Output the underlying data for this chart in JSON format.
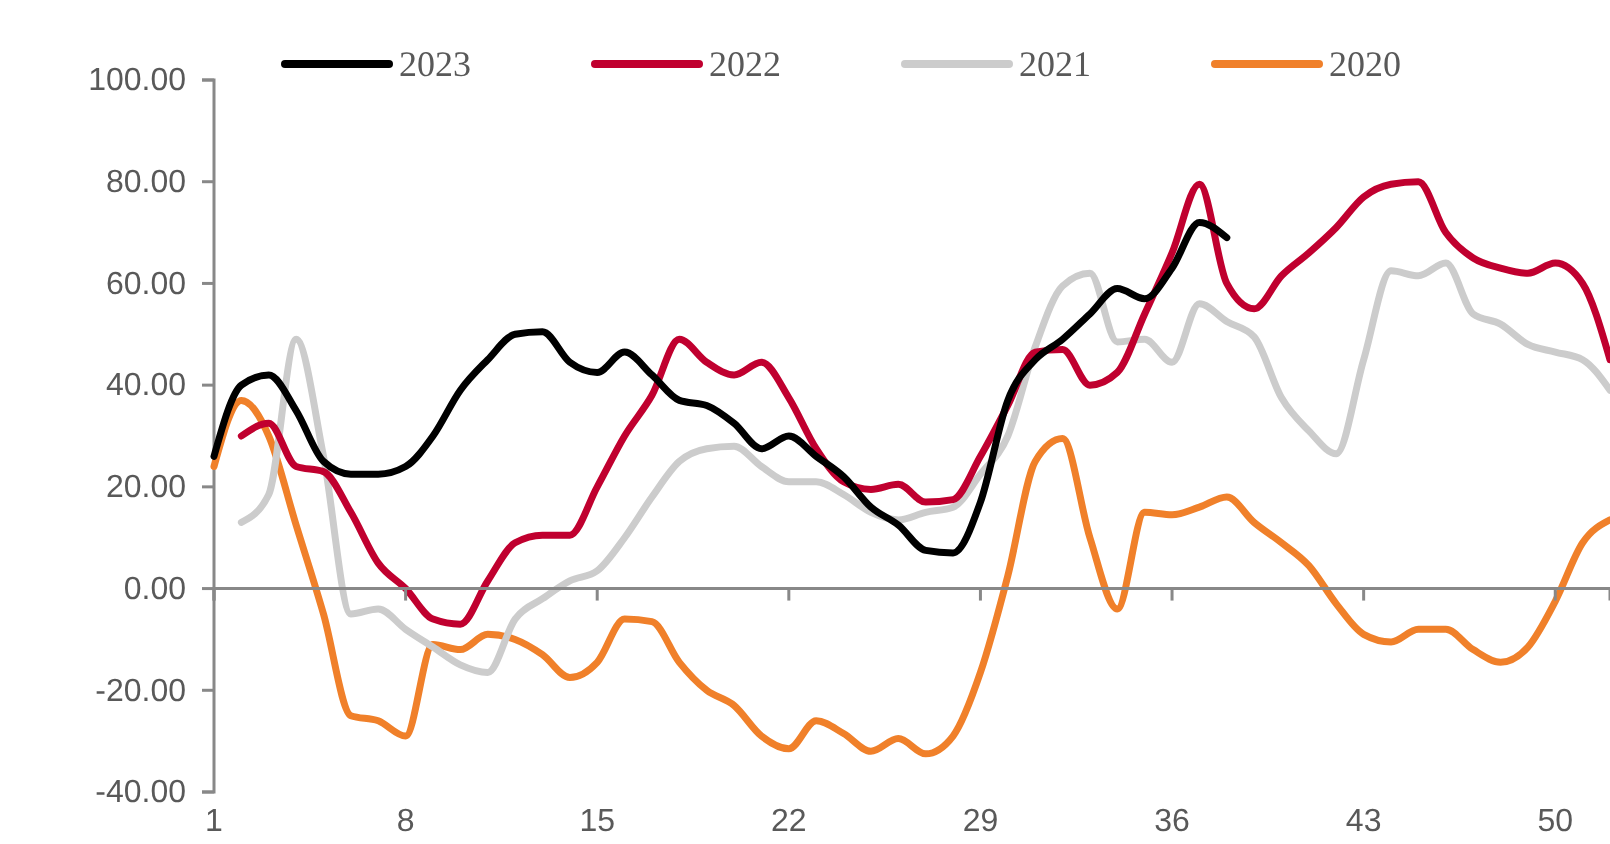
{
  "chart_data": {
    "type": "line",
    "x": [
      1,
      2,
      3,
      4,
      5,
      6,
      7,
      8,
      9,
      10,
      11,
      12,
      13,
      14,
      15,
      16,
      17,
      18,
      19,
      20,
      21,
      22,
      23,
      24,
      25,
      26,
      27,
      28,
      29,
      30,
      31,
      32,
      33,
      34,
      35,
      36,
      37,
      38,
      39,
      40,
      41,
      42,
      43,
      44,
      45,
      46,
      47,
      48,
      49,
      50,
      51,
      52
    ],
    "series": [
      {
        "name": "2023",
        "color": "#000000",
        "values": [
          26,
          40,
          42,
          35,
          25,
          22.5,
          22.5,
          24,
          30,
          39,
          45,
          50,
          50.5,
          44.5,
          42.5,
          46.5,
          42,
          37,
          36,
          32.5,
          27.5,
          30,
          26,
          22,
          16,
          12.5,
          7.5,
          7,
          17,
          37,
          45,
          49,
          54,
          59,
          57,
          63,
          72,
          69,
          null,
          null,
          null,
          null,
          null,
          null,
          null,
          null,
          null,
          null,
          null,
          null,
          null,
          null
        ]
      },
      {
        "name": "2022",
        "color": "#c0002f",
        "values": [
          null,
          30,
          32.5,
          24,
          23,
          15,
          5,
          0,
          -6,
          -7,
          1.5,
          9,
          10.5,
          10.5,
          20,
          30,
          38,
          49,
          44.5,
          42,
          44.5,
          37.5,
          27.5,
          21,
          19.5,
          20.5,
          17,
          17.5,
          26,
          36,
          46.5,
          47,
          40,
          42.5,
          54,
          66,
          79.5,
          60,
          55,
          61.5,
          66,
          71,
          77,
          79.5,
          80,
          70,
          65,
          63,
          62,
          64,
          60,
          45
        ]
      },
      {
        "name": "2021",
        "color": "#cccccc",
        "values": [
          null,
          13,
          18.5,
          49,
          26,
          -5,
          -4,
          -8,
          -11.5,
          -15,
          -16.5,
          -6,
          -2,
          1.5,
          3.5,
          10,
          18,
          25,
          27.5,
          28,
          24,
          21,
          21,
          18.5,
          15,
          13.5,
          15,
          16,
          22.5,
          30,
          47.5,
          59.5,
          62,
          48.5,
          49,
          44.5,
          56,
          52.5,
          49.5,
          37.5,
          31,
          26.5,
          45,
          62.5,
          61.5,
          64,
          54,
          52,
          48,
          46.5,
          45,
          39
        ]
      },
      {
        "name": "2020",
        "color": "#f0802a",
        "values": [
          24,
          37,
          30,
          12.5,
          -5,
          -25,
          -26,
          -29,
          -11,
          -12,
          -9,
          -10,
          -13,
          -17.5,
          -14.5,
          -6,
          -6.5,
          -14.5,
          -20,
          -23,
          -29,
          -31.5,
          -26,
          -28.5,
          -32,
          -29.5,
          -32.5,
          -29,
          -16.5,
          2.5,
          25,
          29.5,
          10,
          -4,
          15,
          14.5,
          16,
          18,
          13,
          9,
          4.5,
          -3,
          -9,
          -10.5,
          -8,
          -8,
          -12,
          -14.5,
          -11.5,
          -2.5,
          9,
          13.5
        ]
      }
    ],
    "xlim": [
      1,
      52
    ],
    "xticks": [
      1,
      8,
      15,
      22,
      29,
      36,
      43,
      50
    ],
    "ylim": [
      -40,
      100
    ],
    "yticks": [
      {
        "value": -40,
        "label": "-40.00"
      },
      {
        "value": -20,
        "label": "-20.00"
      },
      {
        "value": 0,
        "label": "0.00"
      },
      {
        "value": 20,
        "label": "20.00"
      },
      {
        "value": 40,
        "label": "40.00"
      },
      {
        "value": 60,
        "label": "60.00"
      },
      {
        "value": 80,
        "label": "80.00"
      },
      {
        "value": 100,
        "label": "100.00"
      }
    ],
    "legend": "top",
    "grid": false,
    "marker": "none",
    "line_style": "solid"
  }
}
